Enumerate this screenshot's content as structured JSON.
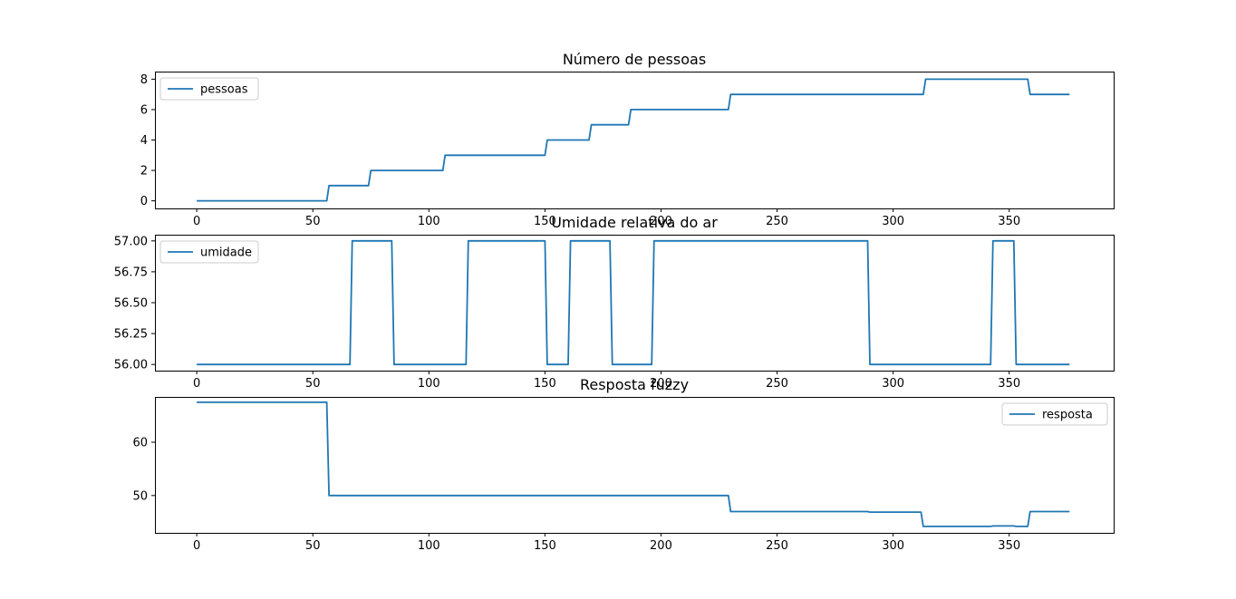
{
  "colors": {
    "line": "#1f77b4",
    "axes": "#000000",
    "legend_border": "#cccccc",
    "background": "#ffffff"
  },
  "chart_data": [
    {
      "type": "line",
      "title": "Número de pessoas",
      "xlim": [
        -18,
        395
      ],
      "ylim": [
        -0.5,
        8.5
      ],
      "xticks": [
        0,
        50,
        100,
        150,
        200,
        250,
        300,
        350
      ],
      "xtick_labels": [
        "0",
        "50",
        "100",
        "150",
        "200",
        "250",
        "300",
        "350"
      ],
      "yticks": [
        0,
        2,
        4,
        6,
        8
      ],
      "ytick_labels": [
        "0",
        "2",
        "4",
        "6",
        "8"
      ],
      "legend": "upper left",
      "series": [
        {
          "name": "pessoas",
          "x": [
            0,
            56,
            57,
            74,
            75,
            106,
            107,
            150,
            151,
            169,
            170,
            186,
            187,
            229,
            230,
            313,
            314,
            358,
            359,
            376
          ],
          "y": [
            0,
            0,
            1,
            1,
            2,
            2,
            3,
            3,
            4,
            4,
            5,
            5,
            6,
            6,
            7,
            7,
            8,
            8,
            7,
            7
          ]
        }
      ]
    },
    {
      "type": "line",
      "title": "Umidade relativa do ar",
      "xlim": [
        -18,
        395
      ],
      "ylim": [
        55.95,
        57.05
      ],
      "xticks": [
        0,
        50,
        100,
        150,
        200,
        250,
        300,
        350
      ],
      "xtick_labels": [
        "0",
        "50",
        "100",
        "150",
        "200",
        "250",
        "300",
        "350"
      ],
      "yticks": [
        56.0,
        56.25,
        56.5,
        56.75,
        57.0
      ],
      "ytick_labels": [
        "56.00",
        "56.25",
        "56.50",
        "56.75",
        "57.00"
      ],
      "legend": "upper left",
      "series": [
        {
          "name": "umidade",
          "x": [
            0,
            66,
            67,
            84,
            85,
            116,
            117,
            150,
            151,
            160,
            161,
            178,
            179,
            196,
            197,
            289,
            290,
            342,
            343,
            352,
            353,
            376
          ],
          "y": [
            56,
            56,
            57,
            57,
            56,
            56,
            57,
            57,
            56,
            56,
            57,
            57,
            56,
            56,
            57,
            57,
            56,
            56,
            57,
            57,
            56,
            56
          ]
        }
      ]
    },
    {
      "type": "line",
      "title": "Resposta fuzzy",
      "xlim": [
        -18,
        395
      ],
      "ylim": [
        43,
        68.5
      ],
      "xticks": [
        0,
        50,
        100,
        150,
        200,
        250,
        300,
        350
      ],
      "xtick_labels": [
        "0",
        "50",
        "100",
        "150",
        "200",
        "250",
        "300",
        "350"
      ],
      "yticks": [
        50,
        60
      ],
      "ytick_labels": [
        "50",
        "60"
      ],
      "legend": "upper right",
      "series": [
        {
          "name": "resposta",
          "x": [
            0,
            56,
            57,
            229,
            230,
            289,
            290,
            312,
            313,
            342,
            343,
            352,
            353,
            358,
            359,
            376
          ],
          "y": [
            67.5,
            67.5,
            50,
            50,
            47,
            47,
            46.9,
            46.9,
            44.2,
            44.2,
            44.3,
            44.3,
            44.2,
            44.2,
            47,
            47
          ]
        }
      ]
    }
  ]
}
